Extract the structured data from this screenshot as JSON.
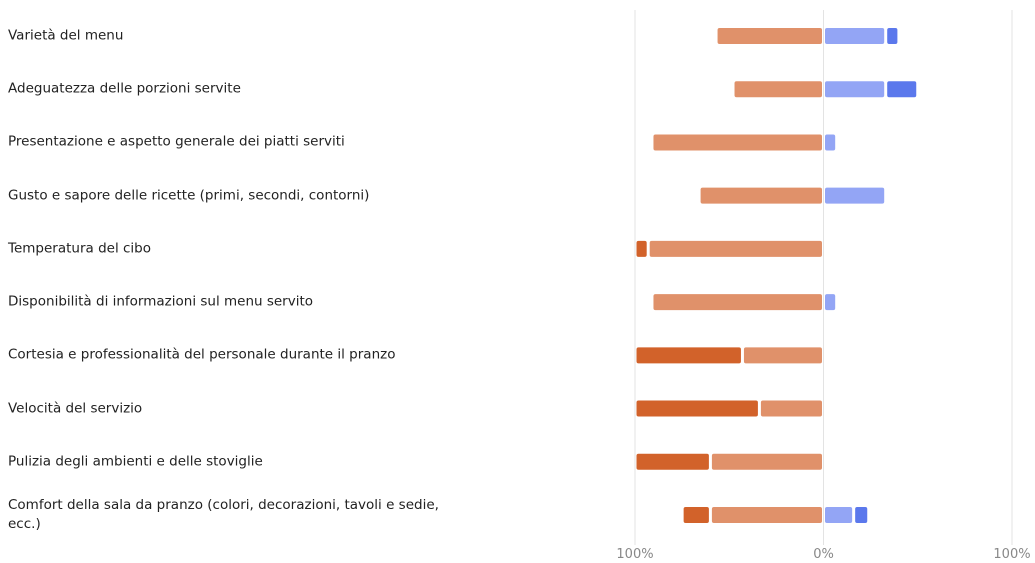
{
  "chart_data": {
    "type": "diverging-bar",
    "categories": [
      "Varietà del menu",
      "Adeguatezza delle porzioni servite",
      "Presentazione e aspetto generale dei piatti serviti",
      "Gusto e sapore delle ricette (primi, secondi, contorni)",
      "Temperatura del cibo",
      "Disponibilità di informazioni sul menu servito",
      "Cortesia e professionalità del personale durante il pranzo",
      "Velocità del servizio",
      "Pulizia degli ambienti e delle stoviglie",
      "Comfort della sala da pranzo (colori, decorazioni, tavoli e sedie, ecc.)"
    ],
    "series": [
      {
        "color": "#d2622a",
        "values": [
          null,
          null,
          null,
          null,
          -7,
          null,
          -57,
          -66,
          -40,
          -15
        ]
      },
      {
        "color": "#e0916a",
        "values": [
          -57,
          -48,
          -91,
          -66,
          -93,
          -91,
          -43,
          -34,
          -60,
          -60
        ]
      },
      {
        "color": "#93a5f5",
        "values": [
          33,
          33,
          7,
          33,
          null,
          7,
          null,
          null,
          null,
          16
        ]
      },
      {
        "color": "#5b78ec",
        "values": [
          7,
          17,
          null,
          null,
          null,
          null,
          null,
          null,
          null,
          8
        ]
      }
    ],
    "xlim": [
      -100,
      100
    ],
    "xticks": [
      {
        "value": -100,
        "label": "100%"
      },
      {
        "value": 0,
        "label": "0%"
      },
      {
        "value": 100,
        "label": "100%"
      }
    ],
    "grid": true
  }
}
